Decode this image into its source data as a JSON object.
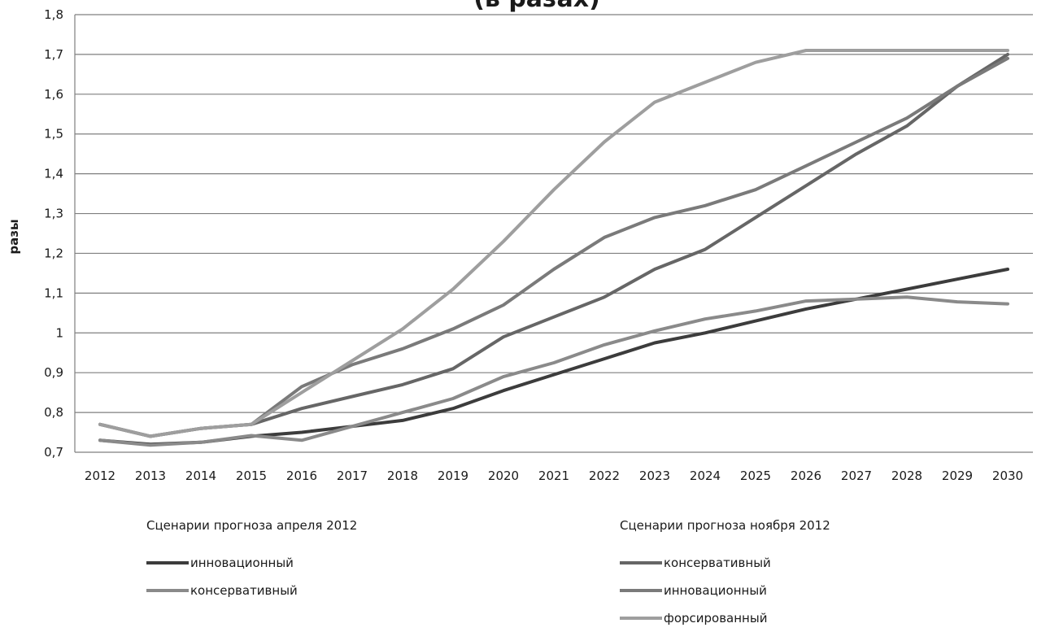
{
  "chart_data": {
    "type": "line",
    "title": "(в разах)",
    "xlabel": "",
    "ylabel": "разы",
    "ylim": [
      0.7,
      1.8
    ],
    "yticks": [
      0.7,
      0.8,
      0.9,
      1.0,
      1.1,
      1.2,
      1.3,
      1.4,
      1.5,
      1.6,
      1.7,
      1.8
    ],
    "ytick_labels": [
      "0,7",
      "0,8",
      "0,9",
      "1",
      "1,1",
      "1,2",
      "1,3",
      "1,4",
      "1,5",
      "1,6",
      "1,7",
      "1,8"
    ],
    "grid": true,
    "x": [
      "2012",
      "2013",
      "2014",
      "2015",
      "2016",
      "2017",
      "2018",
      "2019",
      "2020",
      "2021",
      "2022",
      "2023",
      "2024",
      "2025",
      "2026",
      "2027",
      "2028",
      "2029",
      "2030"
    ],
    "legend_groups": [
      {
        "heading": "Сценарии прогноза апреля 2012",
        "series_indices": [
          0,
          1
        ]
      },
      {
        "heading": "Сценарии прогноза ноября 2012",
        "series_indices": [
          2,
          3,
          4
        ]
      }
    ],
    "series": [
      {
        "name": "инновационный",
        "color": "#3c3c3c",
        "values": [
          0.73,
          0.72,
          0.725,
          0.74,
          0.75,
          0.765,
          0.78,
          0.81,
          0.855,
          0.895,
          0.935,
          0.975,
          1.0,
          1.03,
          1.06,
          1.085,
          1.11,
          1.135,
          1.16
        ]
      },
      {
        "name": "консервативный",
        "color": "#8a8a8a",
        "values": [
          0.73,
          0.718,
          0.725,
          0.742,
          0.73,
          0.765,
          0.8,
          0.835,
          0.89,
          0.925,
          0.97,
          1.005,
          1.035,
          1.055,
          1.08,
          1.085,
          1.09,
          1.078,
          1.073
        ]
      },
      {
        "name": "консервативный",
        "color": "#666666",
        "values": [
          0.77,
          0.74,
          0.76,
          0.77,
          0.81,
          0.84,
          0.87,
          0.91,
          0.99,
          1.04,
          1.09,
          1.16,
          1.21,
          1.29,
          1.37,
          1.45,
          1.52,
          1.62,
          1.7
        ]
      },
      {
        "name": "инновационный",
        "color": "#7a7a7a",
        "values": [
          0.77,
          0.74,
          0.76,
          0.77,
          0.865,
          0.92,
          0.96,
          1.01,
          1.07,
          1.16,
          1.24,
          1.29,
          1.32,
          1.36,
          1.42,
          1.48,
          1.54,
          1.62,
          1.69
        ]
      },
      {
        "name": "форсированный",
        "color": "#9e9e9e",
        "values": [
          0.77,
          0.74,
          0.76,
          0.77,
          0.85,
          0.93,
          1.01,
          1.11,
          1.23,
          1.36,
          1.48,
          1.58,
          1.63,
          1.68,
          1.71,
          1.71,
          1.71,
          1.71,
          1.71
        ]
      }
    ]
  }
}
